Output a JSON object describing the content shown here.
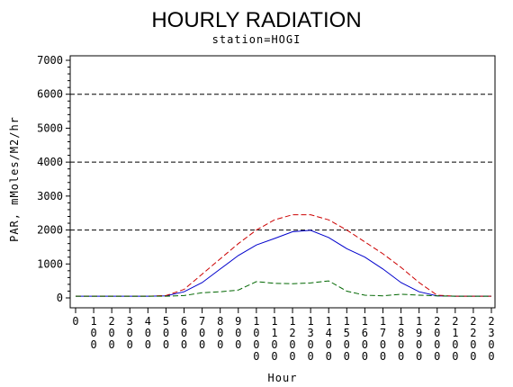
{
  "chart_data": {
    "type": "line",
    "title": "HOURLY RADIATION",
    "subtitle": "station=HOGI",
    "xlabel": "Hour",
    "ylabel": "PAR, mMoles/M2/hr",
    "xlim": [
      0,
      2300
    ],
    "ylim": [
      0,
      7000
    ],
    "x_ticks": [
      0,
      100,
      200,
      300,
      400,
      500,
      600,
      700,
      800,
      900,
      1000,
      1100,
      1200,
      1300,
      1400,
      1500,
      1600,
      1700,
      1800,
      1900,
      2000,
      2100,
      2200,
      2300
    ],
    "y_ticks": [
      0,
      1000,
      2000,
      3000,
      4000,
      5000,
      6000,
      7000
    ],
    "reference_lines": [
      2000,
      4000,
      6000
    ],
    "grid": false,
    "x": [
      0,
      100,
      200,
      300,
      400,
      500,
      600,
      700,
      800,
      900,
      1000,
      1100,
      1200,
      1300,
      1400,
      1500,
      1600,
      1700,
      1800,
      1900,
      2000,
      2100,
      2200,
      2300
    ],
    "series": [
      {
        "color": "#0000cc",
        "style": "solid",
        "values": [
          50,
          50,
          50,
          50,
          50,
          60,
          180,
          450,
          850,
          1250,
          1560,
          1750,
          1950,
          1990,
          1780,
          1450,
          1200,
          850,
          450,
          180,
          60,
          50,
          50,
          50
        ]
      },
      {
        "color": "#cc0000",
        "style": "dashed",
        "values": [
          50,
          50,
          50,
          50,
          50,
          70,
          250,
          700,
          1150,
          1600,
          2000,
          2300,
          2450,
          2450,
          2300,
          2000,
          1650,
          1300,
          900,
          450,
          80,
          50,
          50,
          50
        ]
      },
      {
        "color": "#006600",
        "style": "dashed",
        "values": [
          50,
          50,
          50,
          50,
          50,
          50,
          70,
          150,
          180,
          230,
          480,
          430,
          420,
          440,
          500,
          200,
          80,
          60,
          110,
          80,
          60,
          50,
          50,
          50
        ]
      }
    ]
  }
}
